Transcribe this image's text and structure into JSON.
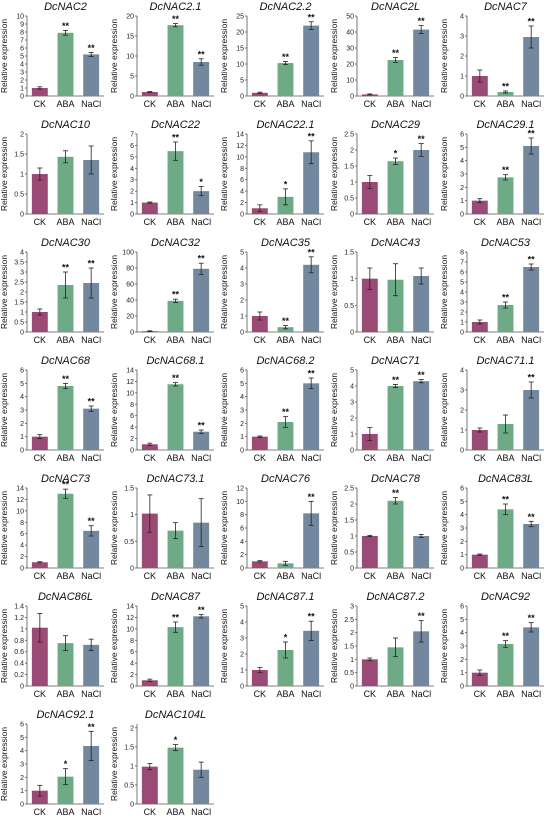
{
  "ylabel": "Relative expression",
  "categories": [
    "CK",
    "ABA",
    "NaCl"
  ],
  "bar_colors": [
    "#9a4a74",
    "#6faa86",
    "#73889f"
  ],
  "chart_data": [
    {
      "type": "bar",
      "title": "DcNAC2",
      "ylim": [
        0,
        10
      ],
      "yticks": [
        0,
        1,
        2,
        3,
        4,
        5,
        6,
        7,
        8,
        9,
        10
      ],
      "ylabel": "Relative expression",
      "categories": [
        "CK",
        "ABA",
        "NaCl"
      ],
      "values": [
        1,
        7.9,
        5.2
      ],
      "errors": [
        0.15,
        0.3,
        0.25
      ],
      "sig": [
        "",
        "**",
        "**"
      ]
    },
    {
      "type": "bar",
      "title": "DcNAC2.1",
      "ylim": [
        0,
        20
      ],
      "yticks": [
        0,
        5,
        10,
        15,
        20
      ],
      "ylabel": "Relative expression",
      "categories": [
        "CK",
        "ABA",
        "NaCl"
      ],
      "values": [
        1,
        17.7,
        8.5
      ],
      "errors": [
        0.1,
        0.4,
        0.8
      ],
      "sig": [
        "",
        "**",
        "**"
      ]
    },
    {
      "type": "bar",
      "title": "DcNAC2.2",
      "ylim": [
        0,
        25
      ],
      "yticks": [
        0,
        5,
        10,
        15,
        20,
        25
      ],
      "ylabel": "Relative expression",
      "categories": [
        "CK",
        "ABA",
        "NaCl"
      ],
      "values": [
        1,
        10.3,
        22
      ],
      "errors": [
        0.2,
        0.5,
        1.2
      ],
      "sig": [
        "",
        "**",
        "**"
      ]
    },
    {
      "type": "bar",
      "title": "DcNAC2L",
      "ylim": [
        0,
        50
      ],
      "yticks": [
        0,
        10,
        20,
        30,
        40,
        50
      ],
      "ylabel": "Relative expression",
      "categories": [
        "CK",
        "ABA",
        "NaCl"
      ],
      "values": [
        1,
        22.5,
        41.5
      ],
      "errors": [
        0.3,
        1.5,
        2.5
      ],
      "sig": [
        "",
        "**",
        "**"
      ]
    },
    {
      "type": "bar",
      "title": "DcNAC7",
      "ylim": [
        0,
        4
      ],
      "yticks": [
        0,
        1,
        2,
        3,
        4
      ],
      "ylabel": "Relative expression",
      "categories": [
        "CK",
        "ABA",
        "NaCl"
      ],
      "values": [
        1,
        0.2,
        2.95
      ],
      "errors": [
        0.3,
        0.05,
        0.55
      ],
      "sig": [
        "",
        "**",
        "**"
      ]
    },
    {
      "type": "bar",
      "title": "DcNAC10",
      "ylim": [
        0,
        2
      ],
      "yticks": [
        0,
        0.5,
        1,
        1.5,
        2
      ],
      "ylabel": "Relative expression",
      "categories": [
        "CK",
        "ABA",
        "NaCl"
      ],
      "values": [
        1,
        1.43,
        1.35
      ],
      "errors": [
        0.15,
        0.15,
        0.35
      ],
      "sig": [
        "",
        "",
        ""
      ]
    },
    {
      "type": "bar",
      "title": "DcNAC22",
      "ylim": [
        0,
        7
      ],
      "yticks": [
        0,
        1,
        2,
        3,
        4,
        5,
        6,
        7
      ],
      "ylabel": "Relative expression",
      "categories": [
        "CK",
        "ABA",
        "NaCl"
      ],
      "values": [
        1,
        5.5,
        2
      ],
      "errors": [
        0.05,
        0.8,
        0.4
      ],
      "sig": [
        "",
        "**",
        "*"
      ]
    },
    {
      "type": "bar",
      "title": "DcNAC22.1",
      "ylim": [
        0,
        14
      ],
      "yticks": [
        0,
        2,
        4,
        6,
        8,
        10,
        12,
        14
      ],
      "ylabel": "Relative expression",
      "categories": [
        "CK",
        "ABA",
        "NaCl"
      ],
      "values": [
        1,
        3,
        10.8
      ],
      "errors": [
        0.6,
        1.4,
        2
      ],
      "sig": [
        "",
        "*",
        "**"
      ]
    },
    {
      "type": "bar",
      "title": "DcNAC29",
      "ylim": [
        0,
        2.5
      ],
      "yticks": [
        0,
        0.5,
        1,
        1.5,
        2,
        2.5
      ],
      "ylabel": "Relative expression",
      "categories": [
        "CK",
        "ABA",
        "NaCl"
      ],
      "values": [
        1,
        1.65,
        2
      ],
      "errors": [
        0.2,
        0.1,
        0.2
      ],
      "sig": [
        "",
        "*",
        "**"
      ]
    },
    {
      "type": "bar",
      "title": "DcNAC29.1",
      "ylim": [
        0,
        6
      ],
      "yticks": [
        0,
        1,
        2,
        3,
        4,
        5,
        6
      ],
      "ylabel": "Relative expression",
      "categories": [
        "CK",
        "ABA",
        "NaCl"
      ],
      "values": [
        1,
        2.75,
        5.1
      ],
      "errors": [
        0.15,
        0.2,
        0.6
      ],
      "sig": [
        "",
        "**",
        "**"
      ]
    },
    {
      "type": "bar",
      "title": "DcNAC30",
      "ylim": [
        0,
        4
      ],
      "yticks": [
        0,
        0.5,
        1,
        1.5,
        2,
        2.5,
        3,
        3.5,
        4
      ],
      "ylabel": "Relative expression",
      "categories": [
        "CK",
        "ABA",
        "NaCl"
      ],
      "values": [
        1,
        2.35,
        2.45
      ],
      "errors": [
        0.15,
        0.65,
        0.75
      ],
      "sig": [
        "",
        "**",
        "**"
      ]
    },
    {
      "type": "bar",
      "title": "DcNAC32",
      "ylim": [
        0,
        100
      ],
      "yticks": [
        0,
        20,
        40,
        60,
        80,
        100
      ],
      "ylabel": "Relative expression",
      "categories": [
        "CK",
        "ABA",
        "NaCl"
      ],
      "values": [
        1,
        39,
        79
      ],
      "errors": [
        0.5,
        2,
        7
      ],
      "sig": [
        "",
        "**",
        "**"
      ]
    },
    {
      "type": "bar",
      "title": "DcNAC35",
      "ylim": [
        0,
        5
      ],
      "yticks": [
        0,
        1,
        2,
        3,
        4,
        5
      ],
      "ylabel": "Relative expression",
      "categories": [
        "CK",
        "ABA",
        "NaCl"
      ],
      "values": [
        1,
        0.3,
        4.2
      ],
      "errors": [
        0.25,
        0.1,
        0.5
      ],
      "sig": [
        "",
        "**",
        "**"
      ]
    },
    {
      "type": "bar",
      "title": "DcNAC43",
      "ylim": [
        0,
        1.5
      ],
      "yticks": [
        0,
        0.5,
        1,
        1.5
      ],
      "ylabel": "Relative expression",
      "categories": [
        "CK",
        "ABA",
        "NaCl"
      ],
      "values": [
        1,
        0.98,
        1.05
      ],
      "errors": [
        0.2,
        0.3,
        0.15
      ],
      "sig": [
        "",
        "",
        ""
      ]
    },
    {
      "type": "bar",
      "title": "DcNAC53",
      "ylim": [
        0,
        8
      ],
      "yticks": [
        0,
        1,
        2,
        3,
        4,
        5,
        6,
        7,
        8
      ],
      "ylabel": "Relative expression",
      "categories": [
        "CK",
        "ABA",
        "NaCl"
      ],
      "values": [
        1,
        2.7,
        6.5
      ],
      "errors": [
        0.2,
        0.3,
        0.3
      ],
      "sig": [
        "",
        "**",
        "**"
      ]
    },
    {
      "type": "bar",
      "title": "DcNAC68",
      "ylim": [
        0,
        6
      ],
      "yticks": [
        0,
        1,
        2,
        3,
        4,
        5,
        6
      ],
      "ylabel": "Relative expression",
      "categories": [
        "CK",
        "ABA",
        "NaCl"
      ],
      "values": [
        1,
        4.8,
        3.1
      ],
      "errors": [
        0.15,
        0.2,
        0.2
      ],
      "sig": [
        "",
        "**",
        "**"
      ]
    },
    {
      "type": "bar",
      "title": "DcNAC68.1",
      "ylim": [
        0,
        14
      ],
      "yticks": [
        0,
        2,
        4,
        6,
        8,
        10,
        12,
        14
      ],
      "ylabel": "Relative expression",
      "categories": [
        "CK",
        "ABA",
        "NaCl"
      ],
      "values": [
        1,
        11.5,
        3.2
      ],
      "errors": [
        0.2,
        0.3,
        0.3
      ],
      "sig": [
        "",
        "**",
        "**"
      ]
    },
    {
      "type": "bar",
      "title": "DcNAC68.2",
      "ylim": [
        0,
        6
      ],
      "yticks": [
        0,
        1,
        2,
        3,
        4,
        5,
        6
      ],
      "ylabel": "Relative expression",
      "categories": [
        "CK",
        "ABA",
        "NaCl"
      ],
      "values": [
        1,
        2.1,
        5
      ],
      "errors": [
        0.05,
        0.4,
        0.4
      ],
      "sig": [
        "",
        "**",
        "**"
      ]
    },
    {
      "type": "bar",
      "title": "DcNAC71",
      "ylim": [
        0,
        5
      ],
      "yticks": [
        0,
        1,
        2,
        3,
        4,
        5
      ],
      "ylabel": "Relative expression",
      "categories": [
        "CK",
        "ABA",
        "NaCl"
      ],
      "values": [
        1,
        4,
        4.3
      ],
      "errors": [
        0.4,
        0.1,
        0.1
      ],
      "sig": [
        "",
        "**",
        "**"
      ]
    },
    {
      "type": "bar",
      "title": "DcNAC71.1",
      "ylim": [
        0,
        4
      ],
      "yticks": [
        0,
        1,
        2,
        3,
        4
      ],
      "ylabel": "Relative expression",
      "categories": [
        "CK",
        "ABA",
        "NaCl"
      ],
      "values": [
        1,
        1.3,
        3
      ],
      "errors": [
        0.1,
        0.45,
        0.4
      ],
      "sig": [
        "",
        "",
        "**"
      ]
    },
    {
      "type": "bar",
      "title": "DcNAC73",
      "ylim": [
        0,
        14
      ],
      "yticks": [
        0,
        2,
        4,
        6,
        8,
        10,
        12,
        14
      ],
      "ylabel": "Relative expression",
      "categories": [
        "CK",
        "ABA",
        "NaCl"
      ],
      "values": [
        1,
        13,
        6.5
      ],
      "errors": [
        0.1,
        0.8,
        0.9
      ],
      "sig": [
        "",
        "**",
        "**"
      ]
    },
    {
      "type": "bar",
      "title": "DcNAC73.1",
      "ylim": [
        0,
        1.5
      ],
      "yticks": [
        0,
        0.5,
        1,
        1.5
      ],
      "ylabel": "Relative expression",
      "categories": [
        "CK",
        "ABA",
        "NaCl"
      ],
      "values": [
        1.02,
        0.7,
        0.85
      ],
      "errors": [
        0.35,
        0.15,
        0.45
      ],
      "sig": [
        "",
        "",
        ""
      ]
    },
    {
      "type": "bar",
      "title": "DcNAC76",
      "ylim": [
        0,
        12
      ],
      "yticks": [
        0,
        2,
        4,
        6,
        8,
        10,
        12
      ],
      "ylabel": "Relative expression",
      "categories": [
        "CK",
        "ABA",
        "NaCl"
      ],
      "values": [
        1,
        0.7,
        8.2
      ],
      "errors": [
        0.1,
        0.3,
        1.8
      ],
      "sig": [
        "",
        "",
        "**"
      ]
    },
    {
      "type": "bar",
      "title": "DcNAC78",
      "ylim": [
        0,
        2.5
      ],
      "yticks": [
        0,
        0.5,
        1,
        1.5,
        2,
        2.5
      ],
      "ylabel": "Relative expression",
      "categories": [
        "CK",
        "ABA",
        "NaCl"
      ],
      "values": [
        1,
        2.1,
        1
      ],
      "errors": [
        0.02,
        0.1,
        0.05
      ],
      "sig": [
        "",
        "**",
        ""
      ]
    },
    {
      "type": "bar",
      "title": "DcNAC83L",
      "ylim": [
        0,
        6
      ],
      "yticks": [
        0,
        1,
        2,
        3,
        4,
        5,
        6
      ],
      "ylabel": "Relative expression",
      "categories": [
        "CK",
        "ABA",
        "NaCl"
      ],
      "values": [
        1,
        4.4,
        3.3
      ],
      "errors": [
        0.05,
        0.4,
        0.2
      ],
      "sig": [
        "",
        "**",
        "**"
      ]
    },
    {
      "type": "bar",
      "title": "DcNAC86L",
      "ylim": [
        0,
        1.4
      ],
      "yticks": [
        0,
        0.2,
        0.4,
        0.6,
        0.8,
        1,
        1.2,
        1.4
      ],
      "ylabel": "Relative expression",
      "categories": [
        "CK",
        "ABA",
        "NaCl"
      ],
      "values": [
        1.02,
        0.75,
        0.72
      ],
      "errors": [
        0.25,
        0.13,
        0.1
      ],
      "sig": [
        "",
        "",
        ""
      ]
    },
    {
      "type": "bar",
      "title": "DcNAC87",
      "ylim": [
        0,
        14
      ],
      "yticks": [
        0,
        2,
        4,
        6,
        8,
        10,
        12,
        14
      ],
      "ylabel": "Relative expression",
      "categories": [
        "CK",
        "ABA",
        "NaCl"
      ],
      "values": [
        1,
        10.3,
        12.2
      ],
      "errors": [
        0.2,
        0.9,
        0.3
      ],
      "sig": [
        "",
        "**",
        "**"
      ]
    },
    {
      "type": "bar",
      "title": "DcNAC87.1",
      "ylim": [
        0,
        5
      ],
      "yticks": [
        0,
        1,
        2,
        3,
        4,
        5
      ],
      "ylabel": "Relative expression",
      "categories": [
        "CK",
        "ABA",
        "NaCl"
      ],
      "values": [
        1,
        2.25,
        3.45
      ],
      "errors": [
        0.15,
        0.5,
        0.6
      ],
      "sig": [
        "",
        "*",
        "**"
      ]
    },
    {
      "type": "bar",
      "title": "DcNAC87.2",
      "ylim": [
        0,
        3
      ],
      "yticks": [
        0,
        0.5,
        1,
        1.5,
        2,
        2.5,
        3
      ],
      "ylabel": "Relative expression",
      "categories": [
        "CK",
        "ABA",
        "NaCl"
      ],
      "values": [
        1,
        1.45,
        2.05
      ],
      "errors": [
        0.05,
        0.35,
        0.4
      ],
      "sig": [
        "",
        "",
        "**"
      ]
    },
    {
      "type": "bar",
      "title": "DcNAC92",
      "ylim": [
        0,
        6
      ],
      "yticks": [
        0,
        1,
        2,
        3,
        4,
        5,
        6
      ],
      "ylabel": "Relative expression",
      "categories": [
        "CK",
        "ABA",
        "NaCl"
      ],
      "values": [
        1,
        3.15,
        4.4
      ],
      "errors": [
        0.2,
        0.25,
        0.35
      ],
      "sig": [
        "",
        "**",
        "**"
      ]
    },
    {
      "type": "bar",
      "title": "DcNAC92.1",
      "ylim": [
        0,
        6
      ],
      "yticks": [
        0,
        1,
        2,
        3,
        4,
        5,
        6
      ],
      "ylabel": "Relative expression",
      "categories": [
        "CK",
        "ABA",
        "NaCl"
      ],
      "values": [
        1,
        2.05,
        4.35
      ],
      "errors": [
        0.4,
        0.6,
        1.1
      ],
      "sig": [
        "",
        "*",
        "**"
      ]
    },
    {
      "type": "bar",
      "title": "DcNAC104L",
      "ylim": [
        0,
        2.1
      ],
      "yticks": [
        0,
        0.5,
        1,
        1.5,
        2
      ],
      "ylabel": "Relative expression",
      "categories": [
        "CK",
        "ABA",
        "NaCl"
      ],
      "values": [
        0.98,
        1.48,
        0.9
      ],
      "errors": [
        0.08,
        0.08,
        0.2
      ],
      "sig": [
        "",
        "*",
        ""
      ]
    }
  ]
}
